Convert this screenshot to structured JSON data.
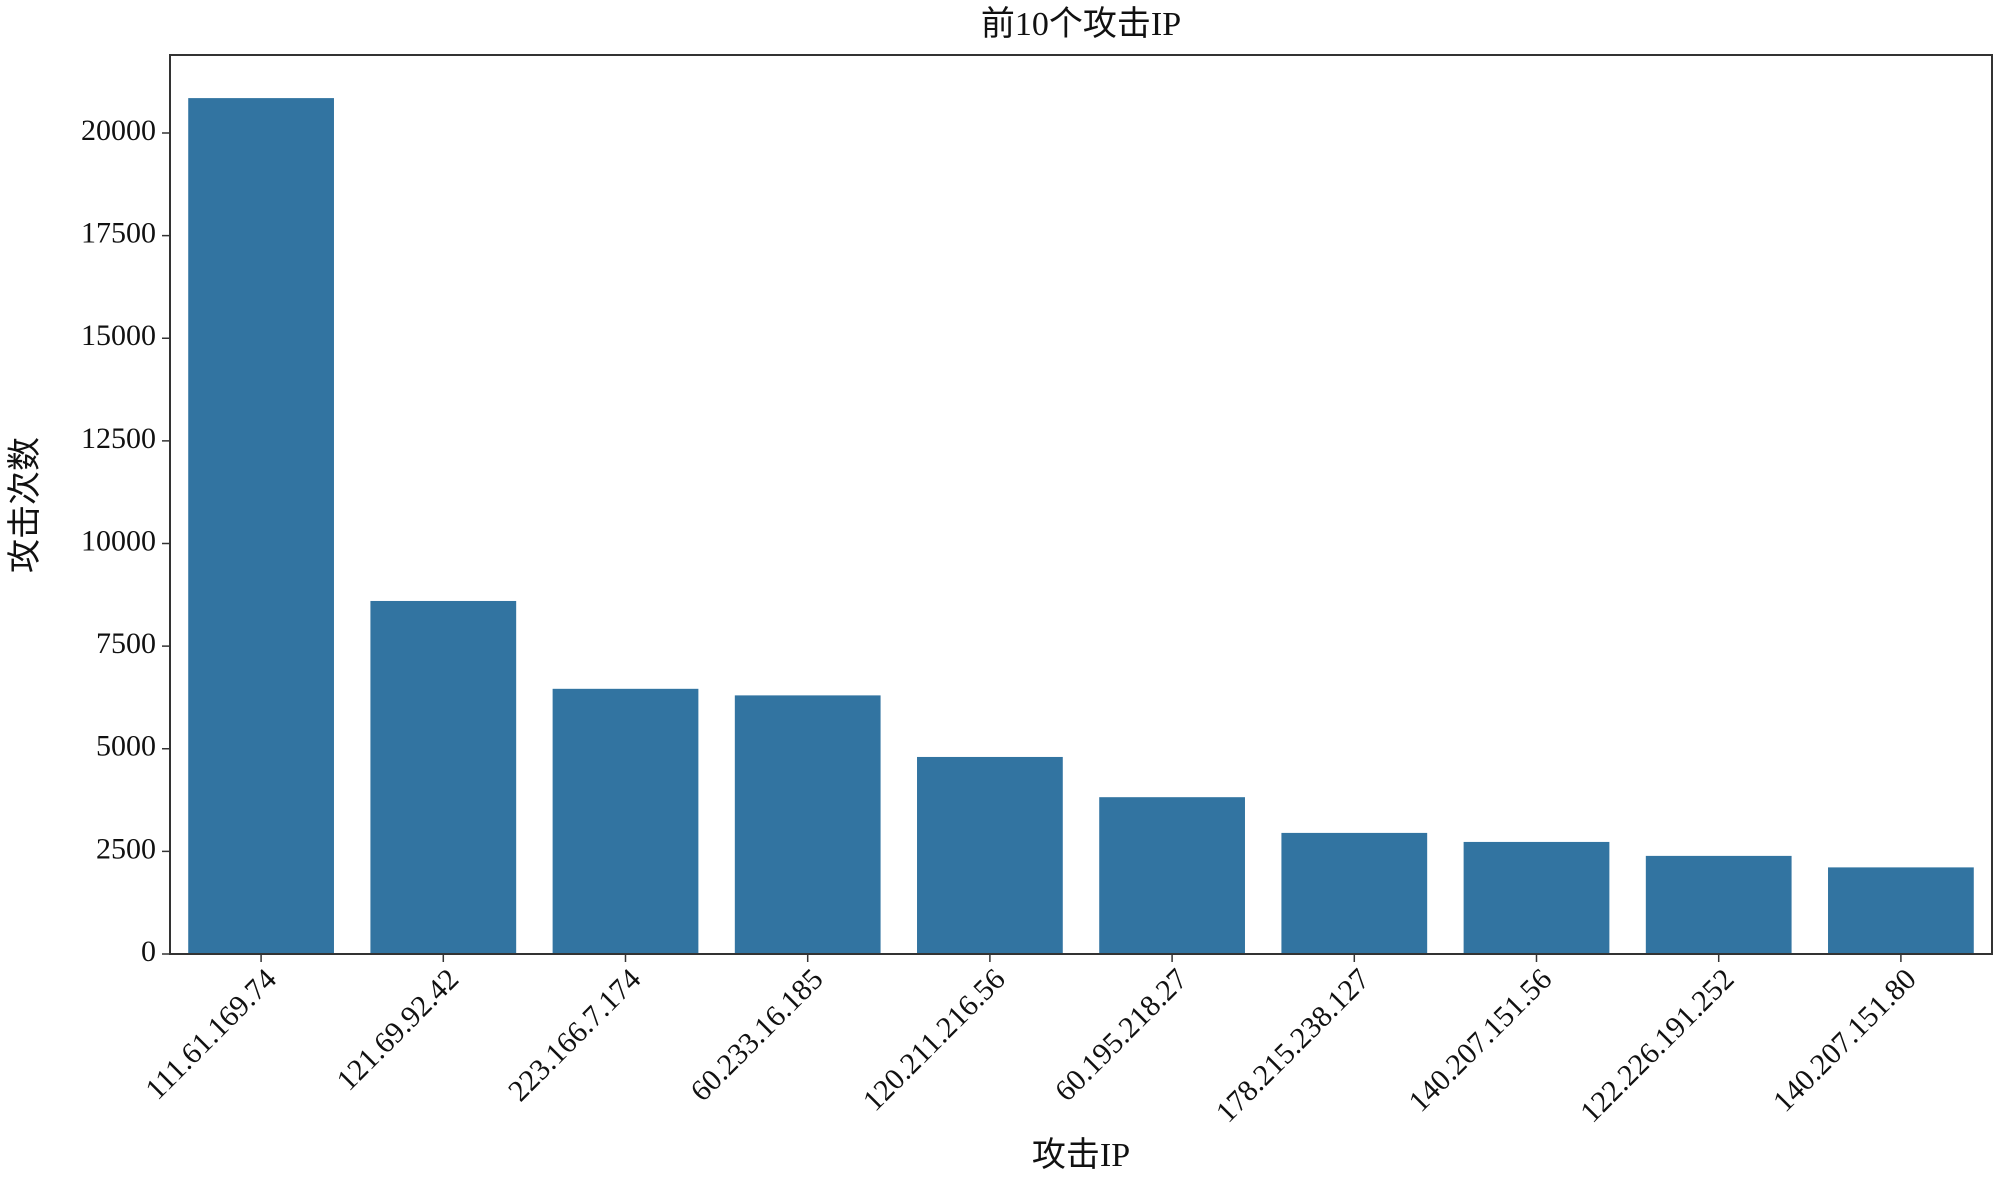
{
  "chart_data": {
    "type": "bar",
    "title": "前10个攻击IP",
    "x_label": "攻击IP",
    "y_label": "攻击次数",
    "categories": [
      "111.61.169.74",
      "121.69.92.42",
      "223.166.7.174",
      "60.233.16.185",
      "120.211.216.56",
      "60.195.218.27",
      "178.215.238.127",
      "140.207.151.56",
      "122.226.191.252",
      "140.207.151.80"
    ],
    "values": [
      20850,
      8600,
      6460,
      6300,
      4800,
      3820,
      2950,
      2730,
      2390,
      2110
    ],
    "color": "#3274a1",
    "ylim": [
      0,
      21900
    ],
    "yticks": [
      0,
      2500,
      5000,
      7500,
      10000,
      12500,
      15000,
      17500,
      20000
    ],
    "grid": false
  }
}
